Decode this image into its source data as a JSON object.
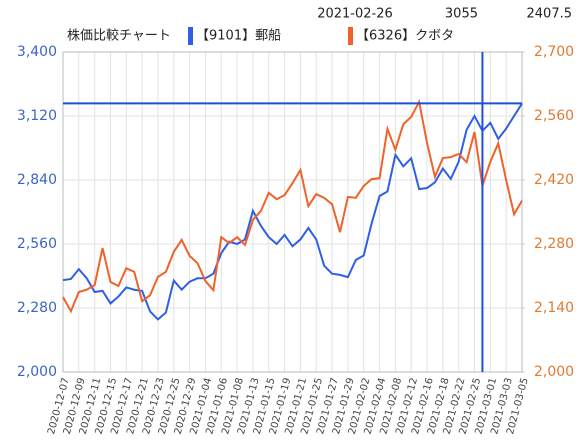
{
  "chart_data": {
    "type": "line",
    "title": "株価比較チャート",
    "cursor": {
      "date": "2021-02-26",
      "values": [
        3055,
        2407.5
      ],
      "y": 3175
    },
    "categories": [
      "2020-12-07",
      null,
      "2020-12-09",
      null,
      "2020-12-11",
      null,
      "2020-12-15",
      null,
      "2020-12-17",
      null,
      "2020-12-21",
      null,
      "2020-12-23",
      null,
      "2020-12-25",
      null,
      "2020-12-29",
      null,
      "2021-01-04",
      null,
      "2021-01-06",
      null,
      "2021-01-08",
      null,
      "2021-01-13",
      null,
      "2021-01-15",
      null,
      "2021-01-19",
      null,
      "2021-01-21",
      null,
      "2021-01-25",
      null,
      "2021-01-27",
      null,
      "2021-01-29",
      null,
      "2021-02-02",
      null,
      "2021-02-04",
      null,
      "2021-02-08",
      null,
      "2021-02-12",
      null,
      "2021-02-16",
      null,
      "2021-02-18",
      null,
      "2021-02-22",
      null,
      "2021-02-25",
      null,
      "2021-03-01",
      null,
      "2021-03-03",
      null,
      "2021-03-05"
    ],
    "series": [
      {
        "name": "【9101】郵船",
        "color": "#2f5fe6",
        "axis": "y",
        "values": [
          2402,
          2407,
          2450,
          2410,
          2350,
          2355,
          2300,
          2330,
          2370,
          2360,
          2355,
          2265,
          2230,
          2260,
          2400,
          2360,
          2395,
          2410,
          2410,
          2430,
          2520,
          2570,
          2560,
          2580,
          2705,
          2640,
          2590,
          2560,
          2600,
          2550,
          2580,
          2630,
          2580,
          2465,
          2430,
          2425,
          2415,
          2490,
          2510,
          2650,
          2770,
          2790,
          2950,
          2900,
          2935,
          2800,
          2805,
          2830,
          2890,
          2845,
          2920,
          3060,
          3120,
          3055,
          3090,
          3020,
          3065,
          3120,
          3175
        ]
      },
      {
        "name": "【6326】クボタ",
        "color": "#f0622a",
        "axis": "y2",
        "values": [
          2164,
          2133,
          2175,
          2180,
          2190,
          2271,
          2197,
          2188,
          2227,
          2219,
          2155,
          2168,
          2208,
          2219,
          2263,
          2289,
          2254,
          2238,
          2199,
          2179,
          2295,
          2282,
          2295,
          2278,
          2333,
          2352,
          2392,
          2378,
          2387,
          2413,
          2442,
          2363,
          2389,
          2381,
          2367,
          2306,
          2383,
          2381,
          2407,
          2422,
          2424,
          2532,
          2486,
          2542,
          2558,
          2591,
          2501,
          2427,
          2468,
          2470,
          2477,
          2459,
          2525,
          2407.5,
          2460,
          2500,
          2420,
          2345,
          2375
        ]
      }
    ],
    "ylim": [
      2000,
      3400
    ],
    "yticks": [
      {
        "value": 2000,
        "label": "2,000"
      },
      {
        "value": 2280,
        "label": "2,280"
      },
      {
        "value": 2560,
        "label": "2,560"
      },
      {
        "value": 2840,
        "label": "2,840"
      },
      {
        "value": 3120,
        "label": "3,120"
      },
      {
        "value": 3400,
        "label": "3,400"
      }
    ],
    "y2lim": [
      2000,
      2700
    ],
    "y2ticks": [
      {
        "value": 2000,
        "label": "2,000"
      },
      {
        "value": 2140,
        "label": "2,140"
      },
      {
        "value": 2280,
        "label": "2,280"
      },
      {
        "value": 2420,
        "label": "2,420"
      },
      {
        "value": 2560,
        "label": "2,560"
      },
      {
        "value": 2700,
        "label": "2,700"
      }
    ],
    "grid": true
  }
}
